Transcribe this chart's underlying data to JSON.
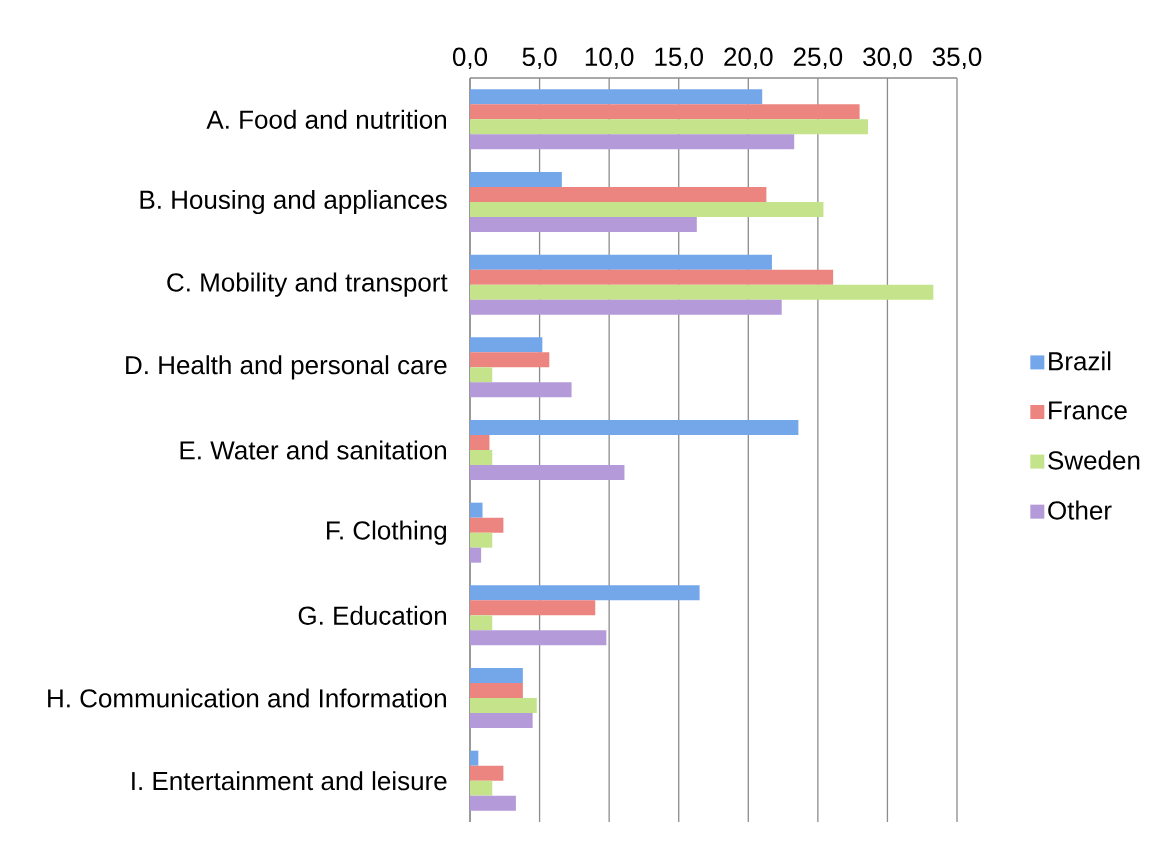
{
  "chart_data": {
    "type": "bar",
    "orientation": "horizontal",
    "categories": [
      "A. Food and nutrition",
      "B. Housing and appliances",
      "C. Mobility and transport",
      "D. Health and personal care",
      "E. Water and sanitation",
      "F. Clothing",
      "G. Education",
      "H. Communication and Information",
      "I. Entertainment and leisure"
    ],
    "series": [
      {
        "name": "Brazil",
        "color": "#73a7ea",
        "values": [
          21.0,
          6.6,
          21.7,
          5.2,
          23.6,
          0.9,
          16.5,
          3.8,
          0.6
        ]
      },
      {
        "name": "France",
        "color": "#ec847f",
        "values": [
          28.0,
          21.3,
          26.1,
          5.7,
          1.4,
          2.4,
          9.0,
          3.8,
          2.4
        ]
      },
      {
        "name": "Sweden",
        "color": "#c4e38a",
        "values": [
          28.6,
          25.4,
          33.3,
          1.6,
          1.6,
          1.6,
          1.6,
          4.8,
          1.6
        ]
      },
      {
        "name": "Other",
        "color": "#b49ad9",
        "values": [
          23.3,
          16.3,
          22.4,
          7.3,
          11.1,
          0.8,
          9.8,
          4.5,
          3.3
        ]
      }
    ],
    "xlim": [
      0,
      35
    ],
    "xticks": [
      {
        "value": 0,
        "label": "0,0"
      },
      {
        "value": 5,
        "label": "5,0"
      },
      {
        "value": 10,
        "label": "10,0"
      },
      {
        "value": 15,
        "label": "15,0"
      },
      {
        "value": 20,
        "label": "20,0"
      },
      {
        "value": 25,
        "label": "25,0"
      },
      {
        "value": 30,
        "label": "30,0"
      },
      {
        "value": 35,
        "label": "35,0"
      }
    ],
    "grid": "x",
    "legend": "right"
  }
}
